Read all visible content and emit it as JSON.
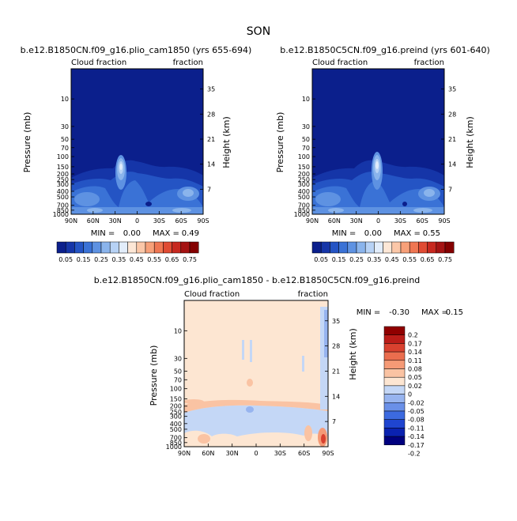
{
  "figure_title": "SON",
  "palettes": {
    "cloud": [
      "#0b1f8c",
      "#1535a8",
      "#2454c4",
      "#3a72d6",
      "#5e92e2",
      "#8ab4ec",
      "#b7d2f5",
      "#e2edfb",
      "#fde7d6",
      "#fbc7a8",
      "#f7a079",
      "#ef7652",
      "#e04b33",
      "#c7281f",
      "#a51313",
      "#840000"
    ],
    "diff": [
      "#00007f",
      "#0a22b0",
      "#1f45d0",
      "#3c6ae0",
      "#6a90e8",
      "#97b4ef",
      "#c4d7f6",
      "#fde6d2",
      "#fac3a3",
      "#f59a76",
      "#ea6d4e",
      "#d9412f",
      "#bb1c18",
      "#900000"
    ]
  },
  "chart_data": [
    {
      "type": "heatmap",
      "name": "panel-left",
      "title": "b.e12.B1850CN.f09_g16.plio_cam1850 (yrs 655-694)",
      "left_label": "Cloud fraction",
      "right_label": "fraction",
      "ylabel": "Pressure (mb)",
      "y2label": "Height (km)",
      "x_ticks": [
        "90N",
        "60N",
        "30N",
        "0",
        "30S",
        "60S",
        "90S"
      ],
      "x_range": [
        90,
        -90
      ],
      "p_ticks": [
        10,
        30,
        50,
        70,
        100,
        150,
        200,
        250,
        300,
        400,
        500,
        700,
        850,
        1000
      ],
      "p_range": [
        3,
        1000
      ],
      "h_ticks": [
        7,
        14,
        21,
        28,
        35
      ],
      "min_label": "MIN =",
      "min_value": "0.00",
      "max_label": "MAX =",
      "max_value": "0.49",
      "colorbar_labels": [
        "0.05",
        "0.15",
        "0.25",
        "0.35",
        "0.45",
        "0.55",
        "0.65",
        "0.75"
      ],
      "field": "cloud"
    },
    {
      "type": "heatmap",
      "name": "panel-right",
      "title": "b.e12.B1850C5CN.f09_g16.preind (yrs 601-640)",
      "left_label": "Cloud fraction",
      "right_label": "fraction",
      "ylabel": "Pressure (mb)",
      "y2label": "Height (km)",
      "x_ticks": [
        "90N",
        "60N",
        "30N",
        "0",
        "30S",
        "60S",
        "90S"
      ],
      "x_range": [
        90,
        -90
      ],
      "p_ticks": [
        10,
        30,
        50,
        70,
        100,
        150,
        200,
        250,
        300,
        400,
        500,
        700,
        850,
        1000
      ],
      "p_range": [
        3,
        1000
      ],
      "h_ticks": [
        7,
        14,
        21,
        28,
        35
      ],
      "min_label": "MIN =",
      "min_value": "0.00",
      "max_label": "MAX =",
      "max_value": "0.55",
      "colorbar_labels": [
        "0.05",
        "0.15",
        "0.25",
        "0.35",
        "0.45",
        "0.55",
        "0.65",
        "0.75"
      ],
      "field": "cloud"
    },
    {
      "type": "heatmap",
      "name": "panel-diff",
      "title": "b.e12.B1850CN.f09_g16.plio_cam1850 - b.e12.B1850C5CN.f09_g16.preind",
      "left_label": "Cloud fraction",
      "right_label": "fraction",
      "ylabel": "Pressure (mb)",
      "y2label": "Height (km)",
      "x_ticks": [
        "90N",
        "60N",
        "30N",
        "0",
        "30S",
        "60S",
        "90S"
      ],
      "x_range": [
        90,
        -90
      ],
      "p_ticks": [
        10,
        30,
        50,
        70,
        100,
        150,
        200,
        250,
        300,
        400,
        500,
        700,
        850,
        1000
      ],
      "p_range": [
        3,
        1000
      ],
      "h_ticks": [
        7,
        14,
        21,
        28,
        35
      ],
      "min_label": "MIN =",
      "min_value": "-0.30",
      "max_label": "MAX =",
      "max_value": "0.15",
      "colorbar_labels": [
        "0.2",
        "0.17",
        "0.14",
        "0.11",
        "0.08",
        "0.05",
        "0.02",
        "0",
        "-0.02",
        "-0.05",
        "-0.08",
        "-0.11",
        "-0.14",
        "-0.17",
        "-0.2"
      ],
      "field": "diff"
    }
  ]
}
